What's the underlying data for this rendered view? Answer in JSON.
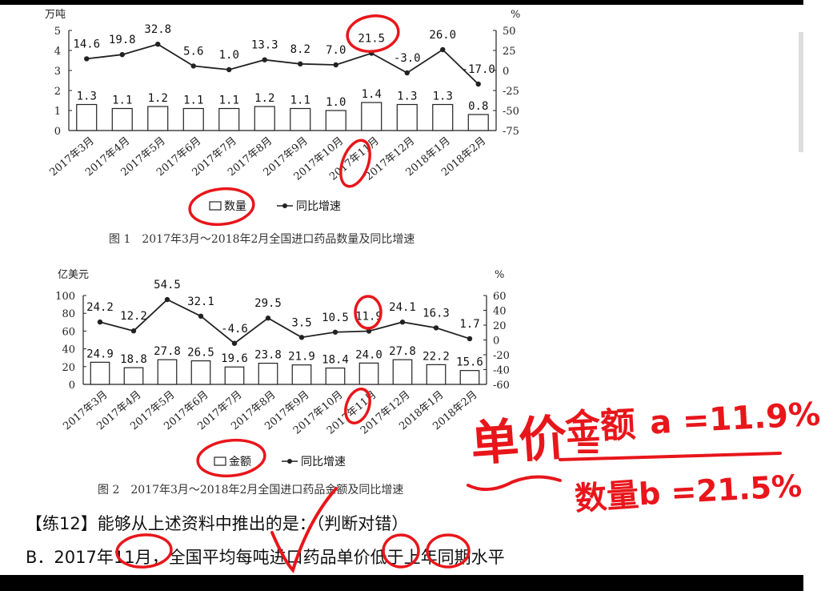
{
  "chart_data": [
    {
      "type": "bar",
      "title": "图 1　2017年3月～2018年2月全国进口药品数量及同比增速",
      "categories": [
        "2017年3月",
        "2017年4月",
        "2017年5月",
        "2017年6月",
        "2017年7月",
        "2017年8月",
        "2017年9月",
        "2017年10月",
        "2017年11月",
        "2017年12月",
        "2018年1月",
        "2018年2月"
      ],
      "y_left_unit": "万吨",
      "y_right_unit": "%",
      "y_left_range": [
        0,
        5
      ],
      "y_left_ticks": [
        "0",
        "1",
        "2",
        "3",
        "4",
        "5"
      ],
      "y_right_range": [
        -75,
        50
      ],
      "y_right_ticks": [
        "50",
        "25",
        "0",
        "-25",
        "-50",
        "-75"
      ],
      "series": [
        {
          "name": "数量",
          "type": "bar",
          "axis": "left",
          "values": [
            1.3,
            1.1,
            1.2,
            1.1,
            1.1,
            1.2,
            1.1,
            1.0,
            1.4,
            1.3,
            1.3,
            0.8
          ],
          "labels": [
            "1.3",
            "1.1",
            "1.2",
            "1.1",
            "1.1",
            "1.2",
            "1.1",
            "1.0",
            "1.4",
            "1.3",
            "1.3",
            "0.8"
          ]
        },
        {
          "name": "同比增速",
          "type": "line",
          "axis": "right",
          "values": [
            14.6,
            19.8,
            32.8,
            5.6,
            1.0,
            13.3,
            8.2,
            7.0,
            21.5,
            -3.0,
            26.0,
            -17.0
          ],
          "labels": [
            "14.6",
            "19.8",
            "32.8",
            "5.6",
            "1.0",
            "13.3",
            "8.2",
            "7.0",
            "21.5",
            "-3.0",
            "26.0",
            "-17.0"
          ]
        }
      ],
      "legend_position": "bottom",
      "grid": false
    },
    {
      "type": "bar",
      "title": "图 2　2017年3月～2018年2月全国进口药品金额及同比增速",
      "categories": [
        "2017年3月",
        "2017年4月",
        "2017年5月",
        "2017年6月",
        "2017年7月",
        "2017年8月",
        "2017年9月",
        "2017年10月",
        "2017年11月",
        "2017年12月",
        "2018年1月",
        "2018年2月"
      ],
      "y_left_unit": "亿美元",
      "y_right_unit": "%",
      "y_left_range": [
        0,
        100
      ],
      "y_left_ticks": [
        "0",
        "20",
        "40",
        "60",
        "80",
        "100"
      ],
      "y_right_range": [
        -60,
        60
      ],
      "y_right_ticks": [
        "60",
        "40",
        "20",
        "0",
        "-20",
        "-40",
        "-60"
      ],
      "series": [
        {
          "name": "金额",
          "type": "bar",
          "axis": "left",
          "values": [
            24.9,
            18.8,
            27.8,
            26.5,
            19.6,
            23.8,
            21.9,
            18.4,
            24.0,
            27.8,
            22.2,
            15.6
          ],
          "labels": [
            "24.9",
            "18.8",
            "27.8",
            "26.5",
            "19.6",
            "23.8",
            "21.9",
            "18.4",
            "24.0",
            "27.8",
            "22.2",
            "15.6"
          ]
        },
        {
          "name": "同比增速",
          "type": "line",
          "axis": "right",
          "values": [
            24.2,
            12.2,
            54.5,
            32.1,
            -4.6,
            29.5,
            3.5,
            10.5,
            11.9,
            24.1,
            16.3,
            1.7
          ],
          "labels": [
            "24.2",
            "12.2",
            "54.5",
            "32.1",
            "-4.6",
            "29.5",
            "3.5",
            "10.5",
            "11.9",
            "24.1",
            "16.3",
            "1.7"
          ]
        }
      ],
      "legend_position": "bottom",
      "grid": false
    }
  ],
  "question": {
    "line1": "【练12】能够从上述资料中推出的是：（判断对错）",
    "line2": "B．2017年11月，全国平均每吨进口药品单价低于上年同期水平"
  },
  "handwriting": {
    "unit_price": "单价",
    "eq": "=",
    "amount": "金额",
    "amount_rate": "a =11.9%",
    "quantity": "数量",
    "quantity_rate": "b =21.5%"
  },
  "colors": {
    "ink": "#222222",
    "annotation": "#e8161b"
  }
}
